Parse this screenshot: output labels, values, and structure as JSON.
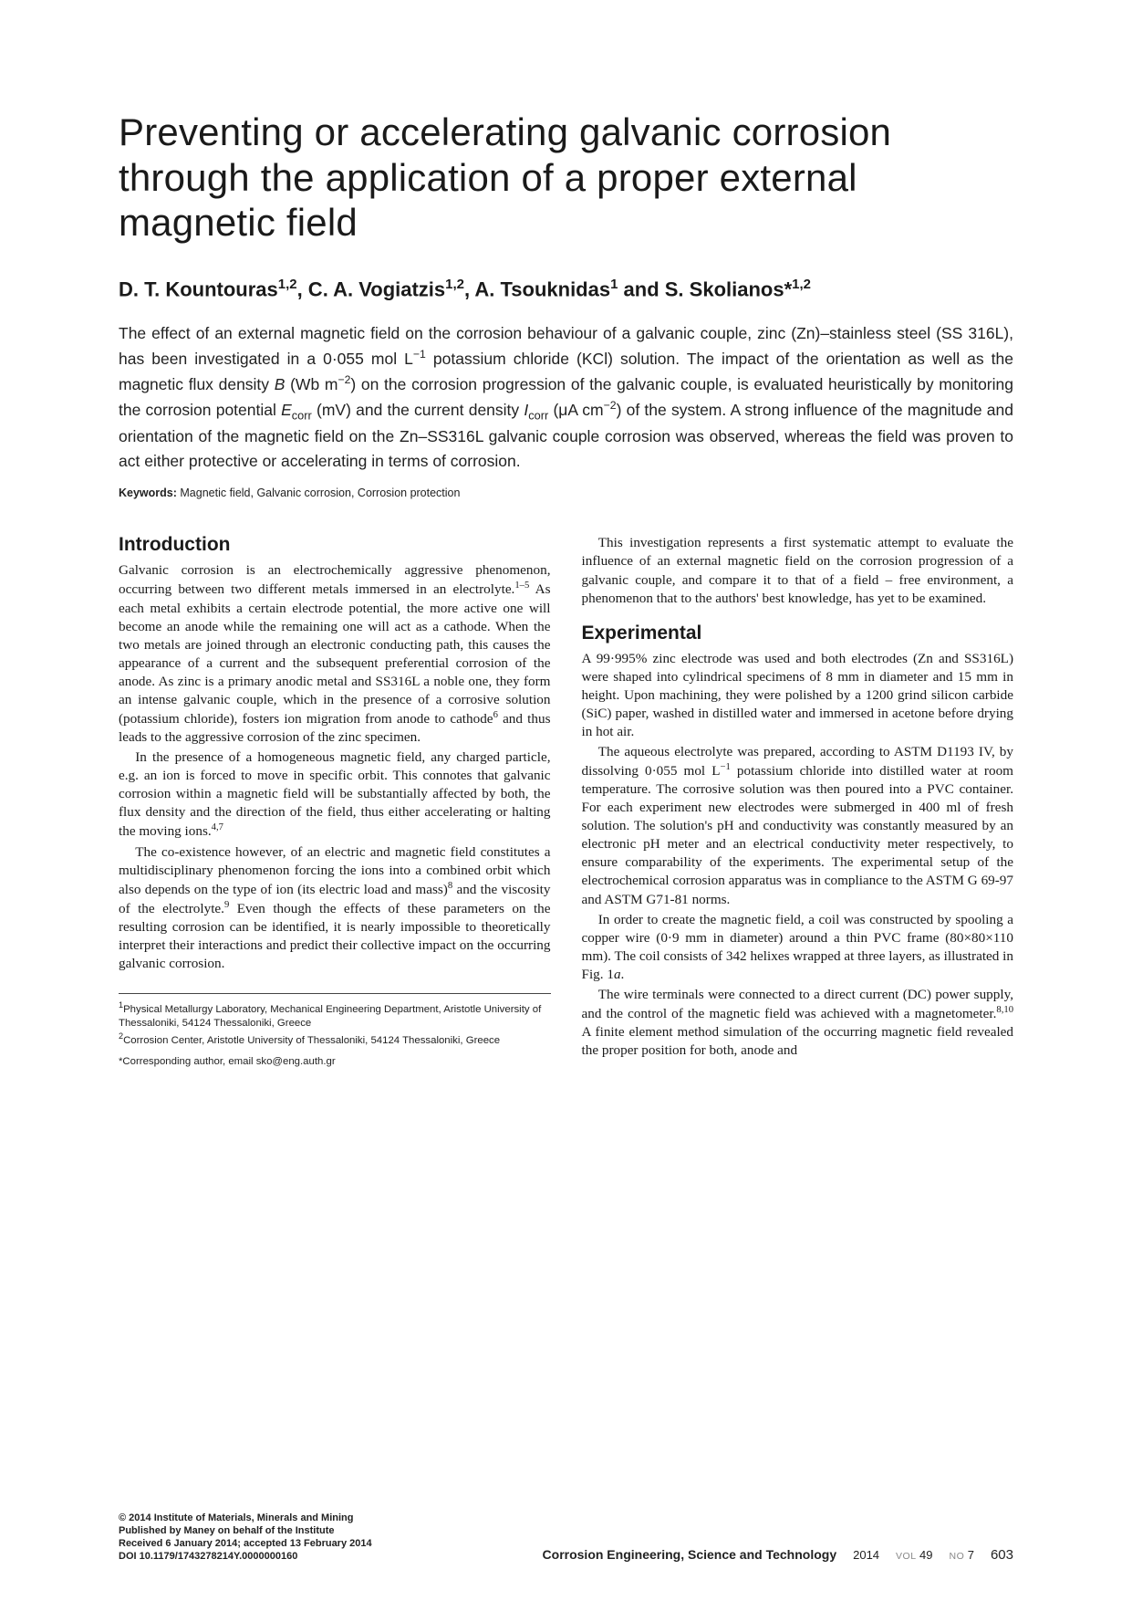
{
  "title": "Preventing or accelerating galvanic corrosion through the application of a proper external magnetic field",
  "authors_html": "D. T. Kountouras<sup>1,2</sup>, C. A. Vogiatzis<sup>1,2</sup>, A. Tsouknidas<sup>1</sup> and S. Skolianos*<sup>1,2</sup>",
  "abstract_html": "The effect of an external magnetic field on the corrosion behaviour of a galvanic couple, zinc (Zn)–stainless steel (SS 316L), has been investigated in a 0·055 mol L<sup>−1</sup> potassium chloride (KCl) solution. The impact of the orientation as well as the magnetic flux density <em>B</em> (Wb m<sup>−2</sup>) on the corrosion progression of the galvanic couple, is evaluated heuristically by monitoring the corrosion potential <em>E</em><sub>corr</sub> (mV) and the current density <em>I</em><sub>corr</sub> (μA cm<sup>−2</sup>) of the system. A strong influence of the magnitude and orientation of the magnetic field on the Zn–SS316L galvanic couple corrosion was observed, whereas the field was proven to act either protective or accelerating in terms of corrosion.",
  "keywords_html": "<b>Keywords:</b> Magnetic field, Galvanic corrosion, Corrosion protection",
  "section1_heading": "Introduction",
  "intro_p1_html": "Galvanic corrosion is an electrochemically aggressive phenomenon, occurring between two different metals immersed in an electrolyte.<sup>1–5</sup> As each metal exhibits a certain electrode potential, the more active one will become an anode while the remaining one will act as a cathode. When the two metals are joined through an electronic conducting path, this causes the appearance of a current and the subsequent preferential corrosion of the anode. As zinc is a primary anodic metal and SS316L a noble one, they form an intense galvanic couple, which in the presence of a corrosive solution (potassium chloride), fosters ion migration from anode to cathode<sup>6</sup> and thus leads to the aggressive corrosion of the zinc specimen.",
  "intro_p2_html": "In the presence of a homogeneous magnetic field, any charged particle, e.g. an ion is forced to move in specific orbit. This connotes that galvanic corrosion within a magnetic field will be substantially affected by both, the flux density and the direction of the field, thus either accelerating or halting the moving ions.<sup>4,7</sup>",
  "intro_p3_html": "The co-existence however, of an electric and magnetic field constitutes a multidisciplinary phenomenon forcing the ions into a combined orbit which also depends on the type of ion (its electric load and mass)<sup>8</sup> and the viscosity of the electrolyte.<sup>9</sup> Even though the effects of these parameters on the resulting corrosion can be identified, it is nearly impossible to theoretically interpret their interactions and predict their collective impact on the occurring galvanic corrosion.",
  "affil1_html": "<sup>1</sup>Physical Metallurgy Laboratory, Mechanical Engineering Department, Aristotle University of Thessaloniki, 54124 Thessaloniki, Greece",
  "affil2_html": "<sup>2</sup>Corrosion Center, Aristotle University of Thessaloniki, 54124 Thessaloniki, Greece",
  "corr_html": "*Corresponding author, email sko@eng.auth.gr",
  "intro_p4_html": "This investigation represents a first systematic attempt to evaluate the influence of an external magnetic field on the corrosion progression of a galvanic couple, and compare it to that of a field – free environment, a phenomenon that to the authors' best knowledge, has yet to be examined.",
  "section2_heading": "Experimental",
  "exp_p1_html": "A 99·995% zinc electrode was used and both electrodes (Zn and SS316L) were shaped into cylindrical specimens of 8 mm in diameter and 15 mm in height. Upon machining, they were polished by a 1200 grind silicon carbide (SiC) paper, washed in distilled water and immersed in acetone before drying in hot air.",
  "exp_p2_html": "The aqueous electrolyte was prepared, according to ASTM D1193 IV, by dissolving 0·055 mol L<sup>−1</sup> potassium chloride into distilled water at room temperature. The corrosive solution was then poured into a PVC container. For each experiment new electrodes were submerged in 400 ml of fresh solution. The solution's pH and conductivity was constantly measured by an electronic pH meter and an electrical conductivity meter respectively, to ensure comparability of the experiments. The experimental setup of the electrochemical corrosion apparatus was in compliance to the ASTM G 69-97 and ASTM G71-81 norms.",
  "exp_p3_html": "In order to create the magnetic field, a coil was constructed by spooling a copper wire (0·9 mm in diameter) around a thin PVC frame (80×80×110 mm). The coil consists of 342 helixes wrapped at three layers, as illustrated in Fig. 1<em>a</em>.",
  "exp_p4_html": "The wire terminals were connected to a direct current (DC) power supply, and the control of the magnetic field was achieved with a magnetometer.<sup>8,10</sup> A finite element method simulation of the occurring magnetic field revealed the proper position for both, anode and",
  "footer": {
    "copyright": "© 2014 Institute of Materials, Minerals and Mining",
    "publisher": "Published by Maney on behalf of the Institute",
    "received": "Received 6 January 2014; accepted 13 February 2014",
    "doi": "DOI 10.1179/1743278214Y.0000000160",
    "journal": "Corrosion Engineering, Science and Technology",
    "year": "2014",
    "vol_label": "VOL",
    "vol": "49",
    "no_label": "NO",
    "no": "7",
    "page": "603"
  }
}
